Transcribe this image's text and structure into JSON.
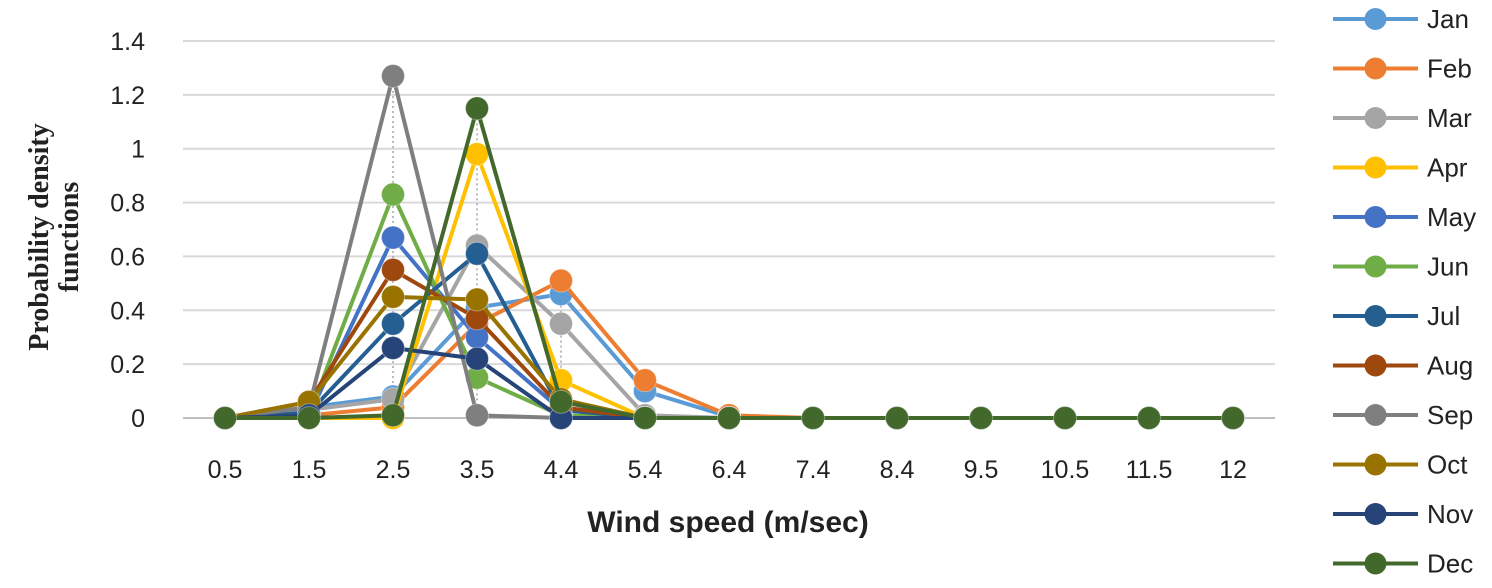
{
  "chart_data": {
    "type": "line",
    "title": "",
    "xlabel": "Wind speed (m/sec)",
    "ylabel_lines": [
      "Probability density",
      "functions"
    ],
    "categories": [
      "0.5",
      "1.5",
      "2.5",
      "3.5",
      "4.4",
      "5.4",
      "6.4",
      "7.4",
      "8.4",
      "9.5",
      "10.5",
      "11.5",
      "12"
    ],
    "ylim": [
      0,
      1.4
    ],
    "yticks": [
      0,
      0.2,
      0.4,
      0.6,
      0.8,
      1,
      1.2,
      1.4
    ],
    "ytick_labels": [
      "0",
      "0.2",
      "0.4",
      "0.6",
      "0.8",
      "1",
      "1.2",
      "1.4"
    ],
    "grid": "horizontal",
    "legend_position": "right",
    "series": [
      {
        "name": "Jan",
        "color": "#5B9BD5",
        "values": [
          0,
          0.04,
          0.08,
          0.41,
          0.46,
          0.1,
          0.005,
          0,
          0,
          0,
          0,
          0,
          0
        ]
      },
      {
        "name": "Feb",
        "color": "#ED7D31",
        "values": [
          0,
          0.01,
          0.04,
          0.35,
          0.51,
          0.14,
          0.01,
          0,
          0,
          0,
          0,
          0,
          0
        ]
      },
      {
        "name": "Mar",
        "color": "#A5A5A5",
        "values": [
          0,
          0.03,
          0.07,
          0.64,
          0.35,
          0.01,
          0,
          0,
          0,
          0,
          0,
          0,
          0
        ]
      },
      {
        "name": "Apr",
        "color": "#FFC000",
        "values": [
          0,
          0.0,
          0.0,
          0.98,
          0.14,
          0.0,
          0,
          0,
          0,
          0,
          0,
          0,
          0
        ]
      },
      {
        "name": "May",
        "color": "#4472C4",
        "values": [
          0,
          0.01,
          0.67,
          0.3,
          0.03,
          0,
          0,
          0,
          0,
          0,
          0,
          0,
          0
        ]
      },
      {
        "name": "Jun",
        "color": "#70AD47",
        "values": [
          0,
          0.01,
          0.83,
          0.15,
          0.01,
          0,
          0,
          0,
          0,
          0,
          0,
          0,
          0
        ]
      },
      {
        "name": "Jul",
        "color": "#255E91",
        "values": [
          0,
          0.02,
          0.35,
          0.61,
          0.03,
          0,
          0,
          0,
          0,
          0,
          0,
          0,
          0
        ]
      },
      {
        "name": "Aug",
        "color": "#9E480E",
        "values": [
          0,
          0.06,
          0.55,
          0.37,
          0.04,
          0,
          0,
          0,
          0,
          0,
          0,
          0,
          0
        ]
      },
      {
        "name": "Sep",
        "color": "#7F7F7F",
        "values": [
          0,
          0.04,
          1.27,
          0.01,
          0,
          0,
          0,
          0,
          0,
          0,
          0,
          0,
          0
        ]
      },
      {
        "name": "Oct",
        "color": "#997300",
        "values": [
          0,
          0.06,
          0.45,
          0.44,
          0.07,
          0,
          0,
          0,
          0,
          0,
          0,
          0,
          0
        ]
      },
      {
        "name": "Nov",
        "color": "#264478",
        "values": [
          0,
          0.01,
          0.26,
          0.22,
          0.0,
          0,
          0,
          0,
          0,
          0,
          0,
          0,
          0
        ]
      },
      {
        "name": "Dec",
        "color": "#43682B",
        "values": [
          0,
          0.0,
          0.01,
          1.15,
          0.06,
          0.0,
          0,
          0,
          0,
          0,
          0,
          0,
          0
        ]
      }
    ]
  }
}
